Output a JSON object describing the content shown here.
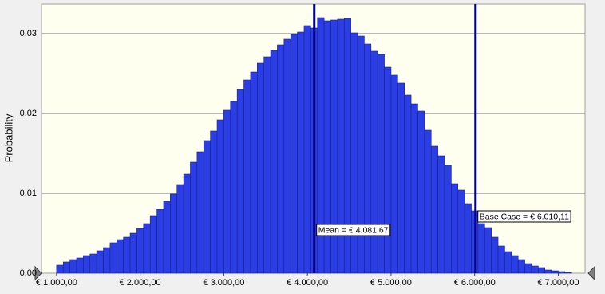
{
  "chart_data": {
    "type": "histogram",
    "y_label": "Probability",
    "bins": [
      1000,
      1080,
      1160,
      1240,
      1320,
      1400,
      1480,
      1560,
      1640,
      1720,
      1800,
      1880,
      1960,
      2040,
      2120,
      2200,
      2280,
      2360,
      2440,
      2520,
      2600,
      2680,
      2760,
      2840,
      2920,
      3000,
      3080,
      3160,
      3240,
      3320,
      3400,
      3480,
      3560,
      3640,
      3720,
      3800,
      3880,
      3960,
      4040,
      4120,
      4200,
      4280,
      4360,
      4440,
      4520,
      4600,
      4680,
      4760,
      4840,
      4920,
      5000,
      5080,
      5160,
      5240,
      5320,
      5400,
      5480,
      5560,
      5640,
      5720,
      5800,
      5880,
      5960,
      6040,
      6120,
      6200,
      6280,
      6360,
      6440,
      6520,
      6600,
      6680,
      6760,
      6840,
      6920,
      7000,
      7080,
      7160
    ],
    "values": [
      0.001,
      0.0014,
      0.0017,
      0.0019,
      0.0022,
      0.0024,
      0.0028,
      0.0032,
      0.0038,
      0.0042,
      0.0045,
      0.005,
      0.0056,
      0.0062,
      0.0072,
      0.008,
      0.009,
      0.0099,
      0.0111,
      0.0124,
      0.0139,
      0.0152,
      0.0166,
      0.0178,
      0.0192,
      0.0204,
      0.0215,
      0.023,
      0.0242,
      0.0252,
      0.0263,
      0.0271,
      0.0279,
      0.0286,
      0.0293,
      0.0299,
      0.0302,
      0.031,
      0.0307,
      0.032,
      0.0316,
      0.0317,
      0.0318,
      0.0319,
      0.0301,
      0.0297,
      0.0287,
      0.0278,
      0.0274,
      0.0258,
      0.0248,
      0.0238,
      0.0223,
      0.0212,
      0.0203,
      0.0179,
      0.0159,
      0.0147,
      0.0135,
      0.0112,
      0.0104,
      0.0087,
      0.0078,
      0.0062,
      0.0057,
      0.0045,
      0.0034,
      0.0027,
      0.0022,
      0.0017,
      0.0012,
      0.0009,
      0.0007,
      0.0004,
      0.0003,
      0.0002,
      0.0001
    ],
    "color": "#2b3ee6",
    "xlim": [
      820,
      7320
    ],
    "ylim": [
      0,
      0.0337
    ],
    "xticks": [
      {
        "value": 1000,
        "label": "€ 1.000,00"
      },
      {
        "value": 2000,
        "label": "€ 2.000,00"
      },
      {
        "value": 3000,
        "label": "€ 3.000,00"
      },
      {
        "value": 4000,
        "label": "€ 4.000,00"
      },
      {
        "value": 5000,
        "label": "€ 5.000,00"
      },
      {
        "value": 6000,
        "label": "€ 6.000,00"
      },
      {
        "value": 7000,
        "label": "€ 7.000,00"
      }
    ],
    "yticks": [
      {
        "value": 0,
        "label": "0,00"
      },
      {
        "value": 0.01,
        "label": "0,01"
      },
      {
        "value": 0.02,
        "label": "0,02"
      },
      {
        "value": 0.03,
        "label": "0,03"
      }
    ],
    "grid": true,
    "annotations": [
      {
        "label": "Mean = € 4.081,67",
        "value": 4081.67
      },
      {
        "label": "Base Case = € 6.010,11",
        "value": 6010.11
      }
    ]
  }
}
